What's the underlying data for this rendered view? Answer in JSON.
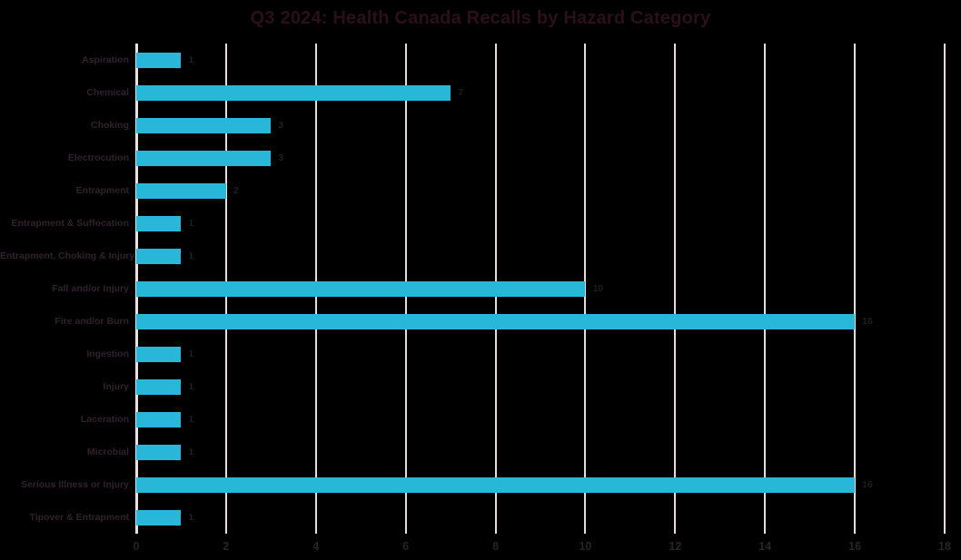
{
  "chart_data": {
    "type": "bar",
    "orientation": "horizontal",
    "title": "Q3 2024: Health Canada Recalls by Hazard Category",
    "categories": [
      "Aspiration",
      "Chemical",
      "Choking",
      "Electrocution",
      "Entrapment",
      "Entrapment & Suffocation",
      "Entrapment, Choking & Injury",
      "Fall and/or Injury",
      "Fire and/or Burn",
      "Ingestion",
      "Injury",
      "Laceration",
      "Microbial",
      "Serious Illness or Injury",
      "Tipover & Entrapment"
    ],
    "values": [
      1,
      7,
      3,
      3,
      2,
      1,
      1,
      10,
      16,
      1,
      1,
      1,
      1,
      16,
      1
    ],
    "data_labels_shown": true,
    "xlabel": "",
    "ylabel": "",
    "xlim": [
      0,
      18
    ],
    "xticks": [
      0,
      2,
      4,
      6,
      8,
      10,
      12,
      14,
      16,
      18
    ],
    "grid": "vertical",
    "legend": "none",
    "colors": {
      "bar": "#28b7d9",
      "gridline": "#e9dbdb",
      "background": "#000000",
      "title_text": "#2a1119",
      "category_text": "#30212f",
      "value_text": "#241b20",
      "tick_text": "#2b2226"
    }
  }
}
